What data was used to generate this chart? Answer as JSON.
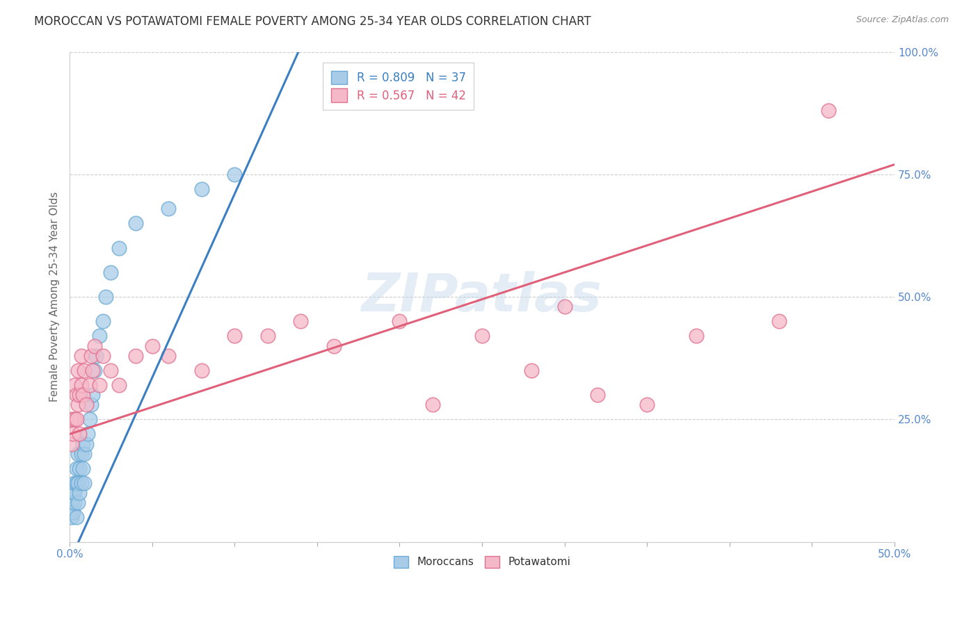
{
  "title": "MOROCCAN VS POTAWATOMI FEMALE POVERTY AMONG 25-34 YEAR OLDS CORRELATION CHART",
  "source": "Source: ZipAtlas.com",
  "ylabel": "Female Poverty Among 25-34 Year Olds",
  "xlim": [
    0.0,
    0.5
  ],
  "ylim": [
    0.0,
    1.0
  ],
  "moroccan_R": 0.809,
  "moroccan_N": 37,
  "potawatomi_R": 0.567,
  "potawatomi_N": 42,
  "moroccan_color": "#a8cce8",
  "moroccan_edge_color": "#6aaad4",
  "potawatomi_color": "#f5b8c8",
  "potawatomi_edge_color": "#e07090",
  "moroccan_line_color": "#3a7fc1",
  "potawatomi_line_color": "#e0607a",
  "background_color": "#ffffff",
  "grid_color": "#cccccc",
  "watermark": "ZIPatlas",
  "tick_color": "#5588cc",
  "moroccan_x": [
    0.001,
    0.001,
    0.002,
    0.002,
    0.003,
    0.003,
    0.003,
    0.004,
    0.004,
    0.004,
    0.005,
    0.005,
    0.005,
    0.006,
    0.006,
    0.007,
    0.007,
    0.008,
    0.008,
    0.009,
    0.009,
    0.01,
    0.011,
    0.012,
    0.013,
    0.014,
    0.015,
    0.016,
    0.018,
    0.02,
    0.022,
    0.025,
    0.03,
    0.04,
    0.06,
    0.08,
    0.1
  ],
  "moroccan_y": [
    0.05,
    0.08,
    0.06,
    0.1,
    0.08,
    0.1,
    0.12,
    0.05,
    0.12,
    0.15,
    0.08,
    0.12,
    0.18,
    0.1,
    0.15,
    0.12,
    0.18,
    0.15,
    0.2,
    0.12,
    0.18,
    0.2,
    0.22,
    0.25,
    0.28,
    0.3,
    0.35,
    0.38,
    0.42,
    0.45,
    0.5,
    0.55,
    0.6,
    0.65,
    0.68,
    0.72,
    0.75
  ],
  "potawatomi_x": [
    0.001,
    0.001,
    0.002,
    0.003,
    0.003,
    0.004,
    0.004,
    0.005,
    0.005,
    0.006,
    0.006,
    0.007,
    0.007,
    0.008,
    0.009,
    0.01,
    0.012,
    0.013,
    0.014,
    0.015,
    0.018,
    0.02,
    0.025,
    0.03,
    0.04,
    0.05,
    0.06,
    0.08,
    0.1,
    0.12,
    0.14,
    0.16,
    0.2,
    0.22,
    0.25,
    0.28,
    0.3,
    0.32,
    0.35,
    0.38,
    0.43,
    0.46
  ],
  "potawatomi_y": [
    0.2,
    0.25,
    0.22,
    0.25,
    0.32,
    0.25,
    0.3,
    0.28,
    0.35,
    0.22,
    0.3,
    0.32,
    0.38,
    0.3,
    0.35,
    0.28,
    0.32,
    0.38,
    0.35,
    0.4,
    0.32,
    0.38,
    0.35,
    0.32,
    0.38,
    0.4,
    0.38,
    0.35,
    0.42,
    0.42,
    0.45,
    0.4,
    0.45,
    0.28,
    0.42,
    0.35,
    0.48,
    0.3,
    0.28,
    0.42,
    0.45,
    0.88
  ],
  "moroccan_line_slope": 7.5,
  "moroccan_line_intercept": -0.04,
  "potawatomi_line_slope": 1.1,
  "potawatomi_line_intercept": 0.22
}
